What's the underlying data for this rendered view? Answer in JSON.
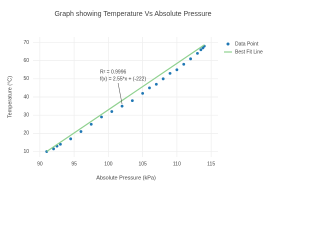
{
  "chart_data": {
    "type": "scatter",
    "title": "Graph showing Temperature Vs Absolute Pressure",
    "x_label": "Absolute Pressure (kPa)",
    "y_label": "Temperature (°C)",
    "xlim": [
      89,
      116
    ],
    "ylim": [
      7,
      73
    ],
    "xticks": [
      90,
      95,
      100,
      105,
      110,
      115
    ],
    "yticks": [
      10,
      20,
      30,
      40,
      50,
      60,
      70
    ],
    "grid": true,
    "legend_position": "top-right",
    "series": [
      {
        "name": "Data Point",
        "color": "#1f77b4",
        "mode": "markers",
        "x": [
          91,
          92,
          92.5,
          93,
          94.5,
          96,
          97.5,
          99,
          100.5,
          102,
          103.5,
          105,
          106,
          107,
          108,
          109,
          110,
          111,
          112,
          113,
          113.5,
          113.8,
          114
        ],
        "values": [
          10,
          11.5,
          13,
          14,
          17,
          21,
          25,
          29,
          32,
          35,
          38,
          42,
          45,
          47,
          50,
          53,
          55,
          58,
          61,
          64,
          66,
          67,
          68
        ]
      },
      {
        "name": "Best Fit Line",
        "color": "#8fd18f",
        "mode": "line",
        "x": [
          91,
          114
        ],
        "values": [
          10,
          68.7
        ]
      }
    ],
    "annotation": {
      "lines": [
        "R² = 0.9996",
        "f(x) = 2.55*x + (-222)"
      ],
      "x": 102,
      "y": 35
    }
  }
}
